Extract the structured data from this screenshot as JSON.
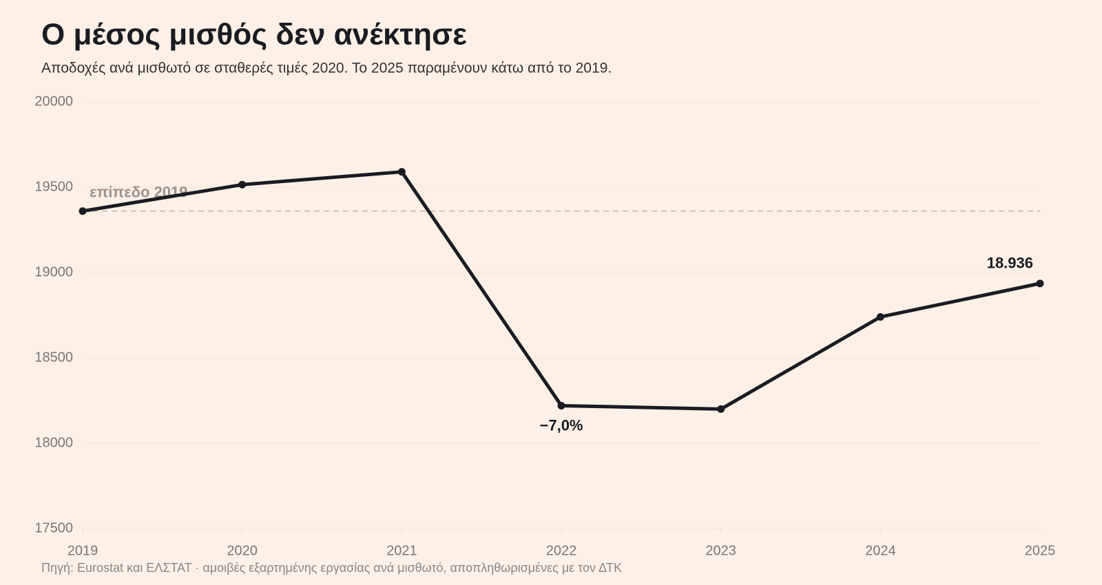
{
  "chart_data": {
    "type": "line",
    "title": "Ο μέσος μισθός δεν ανέκτησε",
    "subtitle": "Αποδοχές ανά μισθωτό σε σταθερές τιμές 2020. Το 2025 παραμένουν κάτω από το 2019.",
    "source": "Πηγή: Eurostat και ΕΛΣΤΑΤ · αμοιβές εξαρτημένης εργασίας ανά μισθωτό, αποπληθωρισμένες με τον ΔΤΚ",
    "x": [
      2019,
      2020,
      2021,
      2022,
      2023,
      2024,
      2025
    ],
    "series": [
      {
        "color": "#1a1c22",
        "values": [
          19360,
          19515,
          19590,
          18220,
          18200,
          18740,
          18936
        ],
        "value_labels": [
          null,
          null,
          null,
          null,
          null,
          null,
          "18.936"
        ]
      }
    ],
    "annotations": [
      {
        "x": 2022,
        "y": 18220,
        "text": "−7,0%"
      }
    ],
    "reference_line": {
      "value": 19360,
      "label": "επίπεδο 2019",
      "color": "#b5aca6"
    },
    "xlim": [
      2019,
      2025
    ],
    "xticks": [
      2019,
      2020,
      2021,
      2022,
      2023,
      2024,
      2025
    ],
    "ylim": [
      17500,
      20000
    ],
    "yticks": [
      17500,
      18000,
      18500,
      19000,
      19500,
      20000
    ],
    "grid": true
  }
}
